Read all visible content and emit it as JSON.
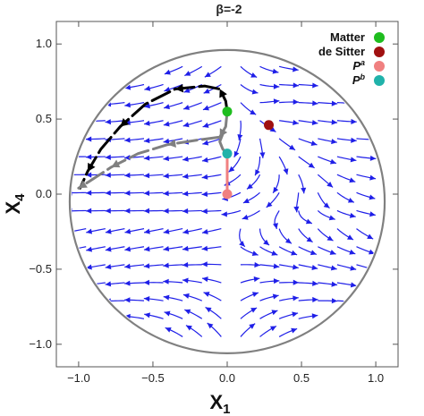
{
  "chart_data": {
    "type": "scatter",
    "title": "β=-2",
    "xlabel": "X",
    "xlabel_sub": "1",
    "ylabel": "X",
    "ylabel_sub": "4",
    "xlim": [
      -1.15,
      1.15
    ],
    "ylim": [
      -1.15,
      1.15
    ],
    "xticks": [
      -1.0,
      -0.5,
      0.0,
      0.5,
      1.0
    ],
    "yticks": [
      -1.0,
      -0.5,
      0.0,
      0.5,
      1.0
    ],
    "xtick_labels": [
      "−1.0",
      "−0.5",
      "0.0",
      "0.5",
      "1.0"
    ],
    "ytick_labels": [
      "−1.0",
      "−0.5",
      "0.0",
      "0.5",
      "1.0"
    ],
    "boundary": {
      "shape": "ellipse",
      "center": [
        0.0,
        -0.05
      ],
      "rx": 1.06,
      "ry": 1.01,
      "color": "#808080"
    },
    "flow_color": "#1f1fe8",
    "legend_position": "top-right",
    "points": [
      {
        "name": "Matter",
        "label": "Matter",
        "x": 0.0,
        "y": 0.55,
        "color": "#1ebd1e"
      },
      {
        "name": "de Sitter",
        "label": "de Sitter",
        "x": 0.28,
        "y": 0.46,
        "color": "#a01010"
      },
      {
        "name": "P^a",
        "label": "P",
        "sup": "a",
        "x": 0.0,
        "y": 0.0,
        "color": "#f08080"
      },
      {
        "name": "P^b",
        "label": "P",
        "sup": "b",
        "x": 0.0,
        "y": 0.27,
        "color": "#20b2aa"
      }
    ],
    "trajectories": [
      {
        "color": "#000000",
        "style": "dashed-arrows",
        "points": [
          [
            0.0,
            0.55
          ],
          [
            -0.01,
            0.62
          ],
          [
            -0.05,
            0.7
          ],
          [
            -0.15,
            0.72
          ],
          [
            -0.35,
            0.7
          ],
          [
            -0.55,
            0.6
          ],
          [
            -0.72,
            0.45
          ],
          [
            -0.85,
            0.3
          ],
          [
            -0.94,
            0.15
          ],
          [
            -0.99,
            0.04
          ]
        ]
      },
      {
        "color": "#808080",
        "style": "dashed-arrows",
        "points": [
          [
            0.0,
            0.55
          ],
          [
            -0.01,
            0.45
          ],
          [
            -0.05,
            0.38
          ],
          [
            -0.2,
            0.36
          ],
          [
            -0.4,
            0.33
          ],
          [
            -0.6,
            0.27
          ],
          [
            -0.78,
            0.18
          ],
          [
            -0.92,
            0.09
          ],
          [
            -1.0,
            0.04
          ]
        ]
      },
      {
        "color": "#808080",
        "style": "solid",
        "points": [
          [
            0.0,
            0.27
          ],
          [
            -0.03,
            0.3
          ],
          [
            -0.05,
            0.35
          ],
          [
            -0.03,
            0.4
          ]
        ]
      },
      {
        "color": "#f08080",
        "style": "solid",
        "points": [
          [
            0.0,
            0.0
          ],
          [
            0.0,
            0.27
          ]
        ]
      }
    ]
  }
}
